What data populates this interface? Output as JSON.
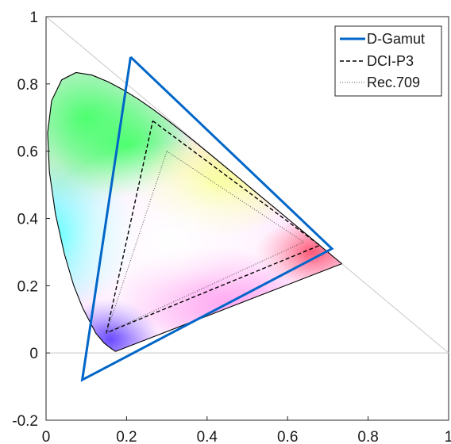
{
  "chart_data": {
    "type": "scatter",
    "xlim": [
      0,
      1
    ],
    "ylim": [
      -0.2,
      1
    ],
    "xticks": [
      0,
      0.2,
      0.4,
      0.6,
      0.8,
      1
    ],
    "xtick_labels": [
      "0",
      "0.2",
      "0.4",
      "0.6",
      "0.8",
      "1"
    ],
    "yticks": [
      -0.2,
      0,
      0.2,
      0.4,
      0.6,
      0.8,
      1
    ],
    "ytick_labels": [
      "-0.2",
      "0",
      "0.2",
      "0.4",
      "0.6",
      "0.8",
      "1"
    ],
    "grid": false,
    "legend_position": "top-right",
    "reference_lines": [
      {
        "name": "x+y=1",
        "x": [
          0,
          1
        ],
        "y": [
          1,
          0
        ],
        "color": "#c8c8c8"
      },
      {
        "name": "y=0",
        "x": [
          0,
          1
        ],
        "y": [
          0,
          0
        ],
        "color": "#c8c8c8"
      }
    ],
    "spectral_locus": {
      "x": [
        0.1741,
        0.174,
        0.1738,
        0.1736,
        0.1733,
        0.1726,
        0.1714,
        0.1689,
        0.1644,
        0.1566,
        0.144,
        0.1241,
        0.0913,
        0.0687,
        0.0454,
        0.0235,
        0.0082,
        0.0039,
        0.0139,
        0.0389,
        0.0743,
        0.1142,
        0.1547,
        0.1929,
        0.2296,
        0.2658,
        0.3016,
        0.3373,
        0.3731,
        0.4087,
        0.4441,
        0.4788,
        0.5125,
        0.5448,
        0.5752,
        0.6029,
        0.627,
        0.6482,
        0.6658,
        0.6801,
        0.6915,
        0.7006,
        0.7079,
        0.714,
        0.719,
        0.723,
        0.726,
        0.7283,
        0.73,
        0.7311,
        0.732,
        0.7327,
        0.7334,
        0.734,
        0.7344,
        0.7346,
        0.7347
      ],
      "y": [
        0.005,
        0.005,
        0.0049,
        0.0049,
        0.0048,
        0.0048,
        0.0051,
        0.0069,
        0.0109,
        0.0177,
        0.0297,
        0.0578,
        0.1327,
        0.2007,
        0.295,
        0.4127,
        0.5384,
        0.6548,
        0.7502,
        0.812,
        0.8338,
        0.8262,
        0.8059,
        0.7816,
        0.7543,
        0.7243,
        0.6923,
        0.6589,
        0.6245,
        0.5896,
        0.5547,
        0.5202,
        0.4866,
        0.4544,
        0.4242,
        0.3965,
        0.3725,
        0.3514,
        0.334,
        0.3197,
        0.3083,
        0.2993,
        0.292,
        0.2859,
        0.2809,
        0.277,
        0.274,
        0.2717,
        0.27,
        0.2689,
        0.268,
        0.2673,
        0.2666,
        0.266,
        0.2656,
        0.2654,
        0.2653
      ]
    },
    "series": [
      {
        "name": "D-Gamut",
        "style": "solid",
        "color": "#0066c8",
        "x": [
          0.21,
          0.71,
          0.09,
          0.21
        ],
        "y": [
          0.88,
          0.31,
          -0.08,
          0.88
        ]
      },
      {
        "name": "DCI-P3",
        "style": "dashed",
        "color": "#000000",
        "x": [
          0.265,
          0.68,
          0.15,
          0.265
        ],
        "y": [
          0.69,
          0.32,
          0.06,
          0.69
        ]
      },
      {
        "name": "Rec.709",
        "style": "dotted",
        "color": "#4d4d4d",
        "x": [
          0.3,
          0.64,
          0.15,
          0.3
        ],
        "y": [
          0.6,
          0.33,
          0.06,
          0.6
        ]
      }
    ]
  }
}
